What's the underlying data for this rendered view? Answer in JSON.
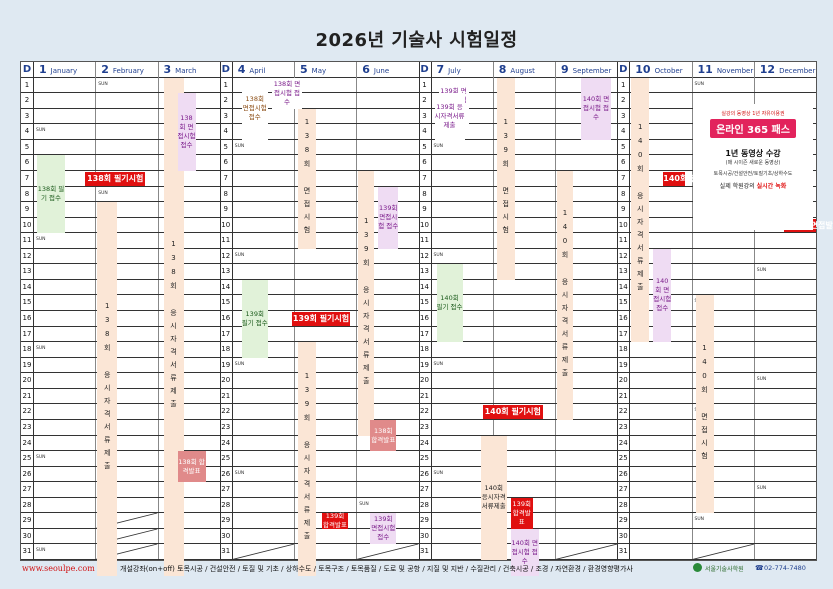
{
  "title": "2026년 기술사 시험일정",
  "header": {
    "day_label": "D",
    "months": [
      {
        "num": "1",
        "name": "January"
      },
      {
        "num": "2",
        "name": "February"
      },
      {
        "num": "3",
        "name": "March"
      },
      {
        "num": "4",
        "name": "April"
      },
      {
        "num": "5",
        "name": "May"
      },
      {
        "num": "6",
        "name": "June"
      },
      {
        "num": "7",
        "name": "July"
      },
      {
        "num": "8",
        "name": "August"
      },
      {
        "num": "9",
        "name": "September"
      },
      {
        "num": "10",
        "name": "October"
      },
      {
        "num": "11",
        "name": "November"
      },
      {
        "num": "12",
        "name": "December"
      }
    ]
  },
  "days": [
    "1",
    "2",
    "3",
    "4",
    "5",
    "6",
    "7",
    "8",
    "9",
    "10",
    "11",
    "12",
    "13",
    "14",
    "15",
    "16",
    "17",
    "18",
    "19",
    "20",
    "21",
    "22",
    "23",
    "24",
    "25",
    "26",
    "27",
    "28",
    "29",
    "30",
    "31"
  ],
  "events": {
    "r138_written": "138회 필기시험",
    "r138_accept": "138회 필기 접수",
    "r138_interview_notice": "138회 면접시험 접수",
    "r138_interview": "138회 면접시험 접수",
    "r138_apply": "138회 응시자격서류제출",
    "r138_apply2": "138회 응시자격서류제출",
    "r138_oral": "138회 면접시험 접수",
    "r138_pass": "138회 합격발표",
    "r139_accept": "139회 필기 접수",
    "r139_written": "139회 필기시험",
    "r139_interview": "139회 면접시험 접수",
    "r139_apply": "139회 응시자격서류제출",
    "r139_pass": "139회 합격발표",
    "r139_oral_accept": "139회 면접시험접수",
    "r140_accept": "140회 필기 접수",
    "r140_written": "140회 필기시험",
    "r140_apply": "140회 응시자격서류제출",
    "r140_interview": "140회 면접시험 접수",
    "r140_pass": "140회 합격발표",
    "r140_oral": "140회 면접발표",
    "r140_interview2": "140회 면접시험 접수",
    "r140_oral_test": "140회 면접시험",
    "r140_written_pass": "140회 필기발표",
    "r138_oral_test": "138회 면접시험",
    "r139_oral_test": "139회 면접시험"
  },
  "ad": {
    "line1": "실강의 동영상 1년 자유이용권",
    "line2": "온라인 365 패스",
    "line3": "1년 동영상 수강",
    "line4": "(매 시이즌 새로운 동영상)",
    "line5": "토목시공/건설안전/토질기초/상하수도",
    "line6a": "실제 학원강의 ",
    "line6b": "실시간 녹화"
  },
  "footer": {
    "url": "www.seoulpe.com",
    "courses": "개설강좌(on+off)  토목시공 / 건설안전 / 토질 및 기초 / 상하수도 / 토목구조 / 토목품질 / 도로 및 공항 / 지질 및 지반 / 수질관리 / 건축시공 / 조경 / 자연환경 / 환경영향평가사",
    "logo": "서울기술사학원",
    "phone": "02-774-7480"
  },
  "sun_label": "SUN",
  "colors": {
    "accent": "#e01010",
    "header": "#1f3f8f",
    "band": "#fbe6d6",
    "green": "#e1f2d9",
    "purple": "#efdcf3"
  }
}
